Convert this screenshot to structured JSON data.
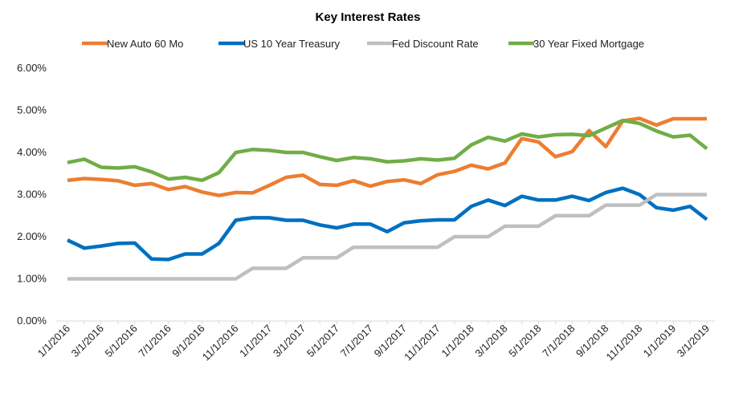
{
  "chart_data": {
    "type": "line",
    "title": "Key Interest Rates",
    "xlabel": "",
    "ylabel": "",
    "ylim": [
      0,
      6
    ],
    "y_ticks": [
      "0.00%",
      "1.00%",
      "2.00%",
      "3.00%",
      "4.00%",
      "5.00%",
      "6.00%"
    ],
    "x_tick_labels": [
      "1/1/2016",
      "3/1/2016",
      "5/1/2016",
      "7/1/2016",
      "9/1/2016",
      "11/1/2016",
      "1/1/2017",
      "3/1/2017",
      "5/1/2017",
      "7/1/2017",
      "9/1/2017",
      "11/1/2017",
      "1/1/2018",
      "3/1/2018",
      "5/1/2018",
      "7/1/2018",
      "9/1/2018",
      "11/1/2018",
      "1/1/2019",
      "3/1/2019"
    ],
    "x": [
      "1/1/2016",
      "2/1/2016",
      "3/1/2016",
      "4/1/2016",
      "5/1/2016",
      "6/1/2016",
      "7/1/2016",
      "8/1/2016",
      "9/1/2016",
      "10/1/2016",
      "11/1/2016",
      "12/1/2016",
      "1/1/2017",
      "2/1/2017",
      "3/1/2017",
      "4/1/2017",
      "5/1/2017",
      "6/1/2017",
      "7/1/2017",
      "8/1/2017",
      "9/1/2017",
      "10/1/2017",
      "11/1/2017",
      "12/1/2017",
      "1/1/2018",
      "2/1/2018",
      "3/1/2018",
      "4/1/2018",
      "5/1/2018",
      "6/1/2018",
      "7/1/2018",
      "8/1/2018",
      "9/1/2018",
      "10/1/2018",
      "11/1/2018",
      "12/1/2018",
      "1/1/2019",
      "2/1/2019",
      "3/1/2019"
    ],
    "grid": false,
    "legend_position": "top",
    "series": [
      {
        "name": "New Auto 60 Mo",
        "color": "#ED7D31",
        "values": [
          3.34,
          3.38,
          3.36,
          3.33,
          3.22,
          3.26,
          3.12,
          3.19,
          3.06,
          2.98,
          3.05,
          3.04,
          3.22,
          3.41,
          3.46,
          3.24,
          3.22,
          3.33,
          3.2,
          3.31,
          3.35,
          3.26,
          3.47,
          3.55,
          3.7,
          3.61,
          3.75,
          4.33,
          4.25,
          3.9,
          4.02,
          4.52,
          4.14,
          4.75,
          4.81,
          4.65,
          4.8,
          4.8,
          4.8
        ]
      },
      {
        "name": "US 10 Year Treasury",
        "color": "#0070C0",
        "values": [
          1.92,
          1.73,
          1.78,
          1.84,
          1.85,
          1.47,
          1.46,
          1.59,
          1.59,
          1.84,
          2.39,
          2.45,
          2.45,
          2.39,
          2.39,
          2.28,
          2.21,
          2.3,
          2.3,
          2.12,
          2.33,
          2.38,
          2.4,
          2.4,
          2.72,
          2.87,
          2.74,
          2.96,
          2.87,
          2.87,
          2.96,
          2.86,
          3.05,
          3.15,
          3.0,
          2.69,
          2.63,
          2.72,
          2.41
        ]
      },
      {
        "name": "Fed Discount Rate",
        "color": "#BFBFBF",
        "values": [
          1.0,
          1.0,
          1.0,
          1.0,
          1.0,
          1.0,
          1.0,
          1.0,
          1.0,
          1.0,
          1.0,
          1.25,
          1.25,
          1.25,
          1.5,
          1.5,
          1.5,
          1.75,
          1.75,
          1.75,
          1.75,
          1.75,
          1.75,
          2.0,
          2.0,
          2.0,
          2.25,
          2.25,
          2.25,
          2.5,
          2.5,
          2.5,
          2.75,
          2.75,
          2.75,
          3.0,
          3.0,
          3.0,
          3.0
        ]
      },
      {
        "name": "30 Year Fixed Mortgage",
        "color": "#70AD47",
        "values": [
          3.76,
          3.84,
          3.65,
          3.63,
          3.66,
          3.54,
          3.37,
          3.41,
          3.34,
          3.52,
          4.0,
          4.07,
          4.05,
          4.0,
          4.0,
          3.9,
          3.81,
          3.88,
          3.85,
          3.78,
          3.8,
          3.85,
          3.82,
          3.86,
          4.18,
          4.36,
          4.27,
          4.44,
          4.37,
          4.42,
          4.43,
          4.4,
          4.58,
          4.76,
          4.69,
          4.51,
          4.37,
          4.41,
          4.09
        ]
      }
    ]
  }
}
